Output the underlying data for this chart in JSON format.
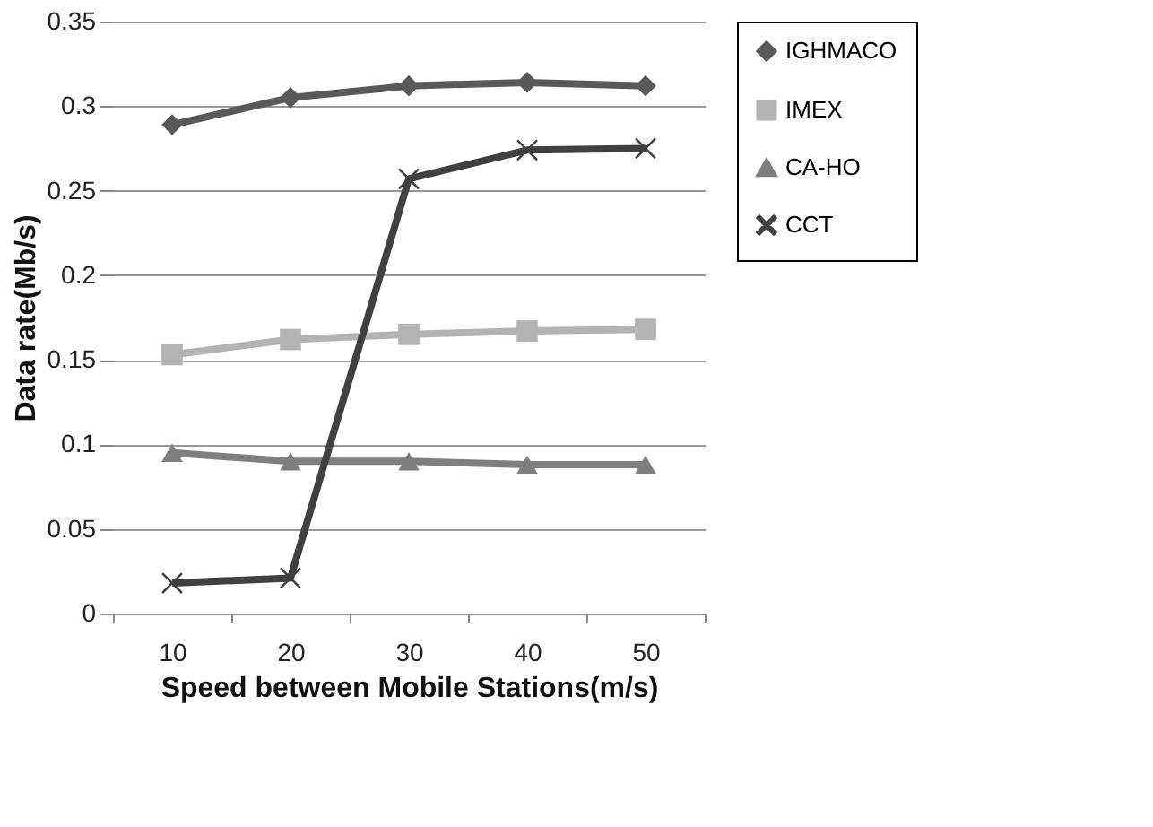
{
  "chart_data": {
    "type": "line",
    "xlabel": "Speed between Mobile Stations(m/s)",
    "ylabel": "Data rate(Mb/s)",
    "categories": [
      "10",
      "20",
      "30",
      "40",
      "50"
    ],
    "series": [
      {
        "name": "IGHMACO",
        "color": "#595959",
        "marker": "diamond",
        "values": [
          0.289,
          0.305,
          0.312,
          0.314,
          0.312
        ]
      },
      {
        "name": "IMEX",
        "color": "#b3b3b3",
        "marker": "square",
        "values": [
          0.153,
          0.162,
          0.165,
          0.167,
          0.168
        ]
      },
      {
        "name": "CA-HO",
        "color": "#7f7f7f",
        "marker": "triangle",
        "values": [
          0.095,
          0.09,
          0.09,
          0.088,
          0.088
        ]
      },
      {
        "name": "CCT",
        "color": "#404040",
        "marker": "cross",
        "values": [
          0.018,
          0.021,
          0.257,
          0.274,
          0.275
        ]
      }
    ],
    "ylim": [
      0,
      0.35
    ],
    "yticks": [
      0,
      0.05,
      0.1,
      0.15,
      0.2,
      0.25,
      0.3,
      0.35
    ],
    "grid": "y",
    "legend": "right",
    "line_style": "solid"
  }
}
